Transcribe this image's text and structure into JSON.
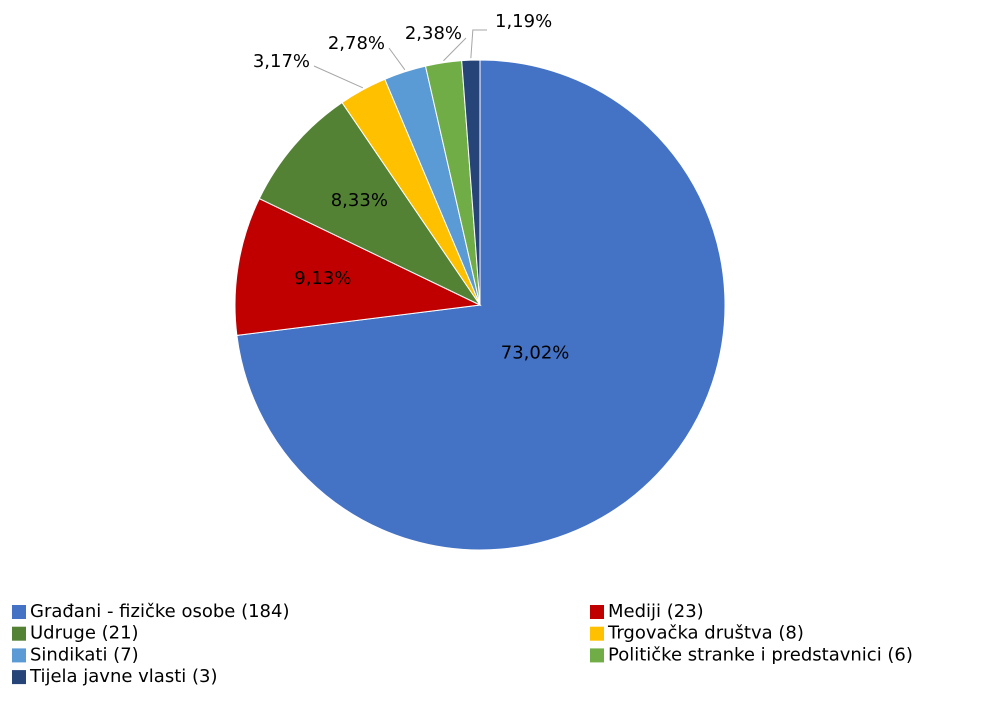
{
  "chart_data": {
    "type": "pie",
    "categories": [
      "Građani - fizičke osobe (184)",
      "Mediji (23)",
      "Udruge (21)",
      "Trgovačka društva (8)",
      "Sindikati (7)",
      "Političke stranke i predstavnici  (6)",
      "Tijela javne vlasti (3)"
    ],
    "values": [
      73.02,
      9.13,
      8.33,
      3.17,
      2.78,
      2.38,
      1.19
    ],
    "value_labels": [
      "73,02%",
      "9,13%",
      "8,33%",
      "3,17%",
      "2,78%",
      "2,38%",
      "1,19%"
    ],
    "colors": [
      "#4472c4",
      "#c00000",
      "#548235",
      "#ffc000",
      "#5b9bd5",
      "#70ad47",
      "#264478"
    ],
    "legend": "bottom"
  }
}
